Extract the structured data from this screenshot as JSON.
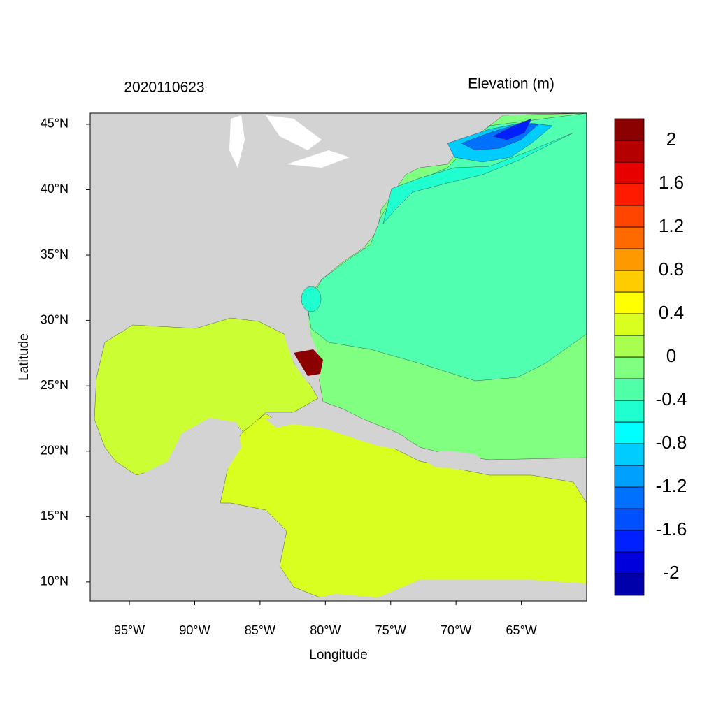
{
  "chart_data": {
    "type": "map",
    "title_left": "2020110623",
    "title_right": "Elevation (m)",
    "xlabel": "Longitude",
    "ylabel": "Latitude",
    "xlim": [
      -98,
      -60
    ],
    "ylim": [
      8.55,
      45.85
    ],
    "xticks": [
      {
        "value": -95,
        "label": "95°W"
      },
      {
        "value": -90,
        "label": "90°W"
      },
      {
        "value": -85,
        "label": "85°W"
      },
      {
        "value": -80,
        "label": "80°W"
      },
      {
        "value": -75,
        "label": "75°W"
      },
      {
        "value": -70,
        "label": "70°W"
      },
      {
        "value": -65,
        "label": "65°W"
      }
    ],
    "yticks": [
      {
        "value": 10,
        "label": "10°N"
      },
      {
        "value": 15,
        "label": "15°N"
      },
      {
        "value": 20,
        "label": "20°N"
      },
      {
        "value": 25,
        "label": "25°N"
      },
      {
        "value": 30,
        "label": "30°N"
      },
      {
        "value": 35,
        "label": "35°N"
      },
      {
        "value": 40,
        "label": "40°N"
      },
      {
        "value": 45,
        "label": "45°N"
      }
    ],
    "colorbar": {
      "lim": [
        -2.2,
        2.2
      ],
      "ticks": [
        -2,
        -1.6,
        -1.2,
        -0.8,
        -0.4,
        0,
        0.4,
        0.8,
        1.2,
        1.6,
        2
      ],
      "colors": [
        "#0000aa",
        "#0000dd",
        "#0020ff",
        "#0050ff",
        "#0070ff",
        "#00a0ff",
        "#00ccff",
        "#00ffff",
        "#20ffd0",
        "#50ffa8",
        "#80ff80",
        "#a8ff50",
        "#d8ff20",
        "#ffff00",
        "#ffcc00",
        "#ff9900",
        "#ff6a00",
        "#ff4500",
        "#ff1a00",
        "#e60000",
        "#b40000",
        "#8b0000"
      ]
    }
  }
}
